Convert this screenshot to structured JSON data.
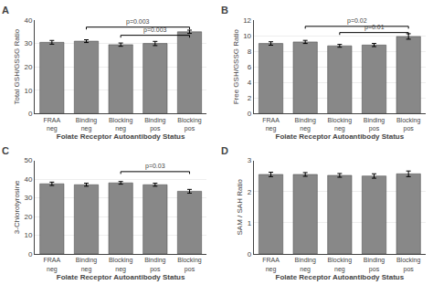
{
  "chart_data": [
    {
      "type": "bar",
      "title": "A",
      "ylabel": "Total GSH/GSSG Ratio",
      "xlabel": "Folate Receptor Autoantibody Status",
      "categories": [
        "FRAA\nneg",
        "Binding\nneg",
        "Blocking\nneg",
        "Binding\npos",
        "Blocking\npos"
      ],
      "values": [
        30.5,
        31.0,
        29.5,
        30.0,
        35.0
      ],
      "errors": [
        0.8,
        0.6,
        0.7,
        0.9,
        0.7
      ],
      "color": "#888888",
      "ylim": [
        0,
        40
      ],
      "yticks": [
        0,
        10,
        20,
        30,
        40
      ],
      "grid": true,
      "annotations": [
        {
          "between": [
            "Binding\nneg",
            "Blocking\npos"
          ],
          "y": 37.0,
          "text": "p=0.003"
        },
        {
          "between": [
            "Blocking\nneg",
            "Blocking\npos"
          ],
          "y": 33.5,
          "text": "p=0.003"
        }
      ]
    },
    {
      "type": "bar",
      "title": "B",
      "ylabel": "Free GSH/GSSG Ratio",
      "xlabel": "Folate Receptor Autoantibody Status",
      "categories": [
        "FRAA\nneg",
        "Binding\nneg",
        "Blocking\nneg",
        "Binding\npos",
        "Blocking\npos"
      ],
      "values": [
        9.0,
        9.2,
        8.7,
        8.8,
        9.9
      ],
      "errors": [
        0.22,
        0.2,
        0.18,
        0.2,
        0.35
      ],
      "color": "#888888",
      "ylim": [
        0,
        12
      ],
      "yticks": [
        0,
        2,
        4,
        6,
        8,
        10,
        12
      ],
      "grid": true,
      "annotations": [
        {
          "between": [
            "Binding\nneg",
            "Blocking\npos"
          ],
          "y": 11.2,
          "text": "p=0.02"
        },
        {
          "between": [
            "Blocking\nneg",
            "Blocking\npos"
          ],
          "y": 10.4,
          "text": "p=0.01"
        }
      ]
    },
    {
      "type": "bar",
      "title": "C",
      "ylabel": "3-Chlorotyrosine",
      "xlabel": "Folate Receptor Autoantibody Status",
      "categories": [
        "FRAA\nneg",
        "Binding\nneg",
        "Blocking\nneg",
        "Binding\npos",
        "Blocking\npos"
      ],
      "values": [
        37.5,
        37.0,
        38.0,
        37.0,
        33.5
      ],
      "errors": [
        0.9,
        0.8,
        0.7,
        0.8,
        1.0
      ],
      "color": "#888888",
      "ylim": [
        0,
        50
      ],
      "yticks": [
        0,
        10,
        20,
        30,
        40,
        50
      ],
      "grid": true,
      "annotations": [
        {
          "between": [
            "Blocking\nneg",
            "Blocking\npos"
          ],
          "y": 44.0,
          "text": "p=0.03"
        }
      ]
    },
    {
      "type": "bar",
      "title": "D",
      "ylabel": "SAM / SAH Ratio",
      "xlabel": "Folate Receptor Autoantibody Status",
      "categories": [
        "FRAA\nneg",
        "Binding\nneg",
        "Blocking\nneg",
        "Binding\npos",
        "Blocking\npos"
      ],
      "values": [
        2.55,
        2.55,
        2.52,
        2.5,
        2.57
      ],
      "errors": [
        0.07,
        0.06,
        0.06,
        0.07,
        0.09
      ],
      "color": "#888888",
      "ylim": [
        0,
        3
      ],
      "yticks": [
        0,
        1,
        2,
        3
      ],
      "grid": true
    }
  ]
}
